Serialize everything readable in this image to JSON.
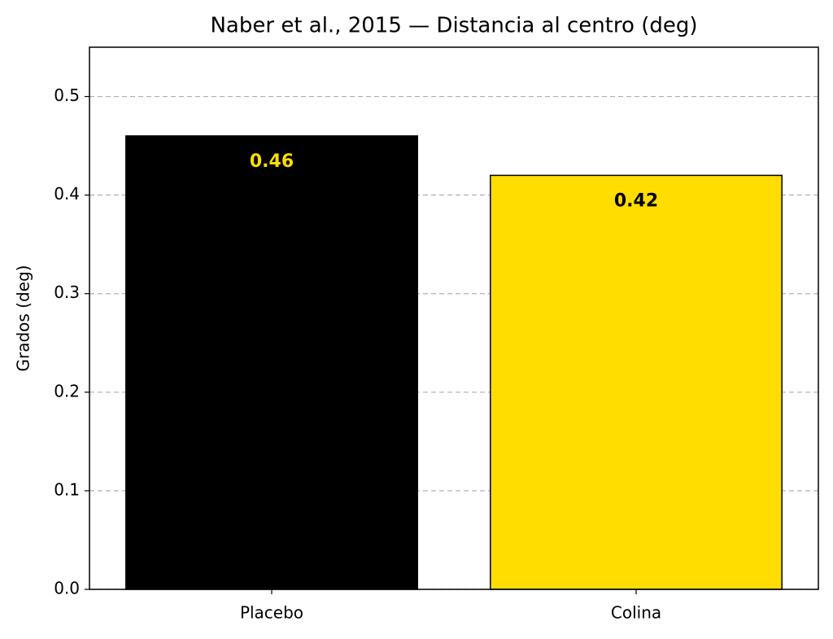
{
  "chart_data": {
    "type": "bar",
    "title": "Naber et al., 2015 — Distancia al centro (deg)",
    "y_label": "Grados (deg)",
    "categories": [
      "Placebo",
      "Colina"
    ],
    "values": [
      0.46,
      0.42
    ],
    "colors": [
      "#000000",
      "#FFDD00"
    ],
    "label_colors": [
      "#FFDD00",
      "#000000"
    ],
    "edge_color": "#000000",
    "ylim": [
      0,
      0.55
    ],
    "yticks": [
      {
        "value": 0,
        "label": "0.0"
      },
      0.1,
      0.2,
      0.3,
      0.4,
      0.5
    ],
    "grid": true
  }
}
